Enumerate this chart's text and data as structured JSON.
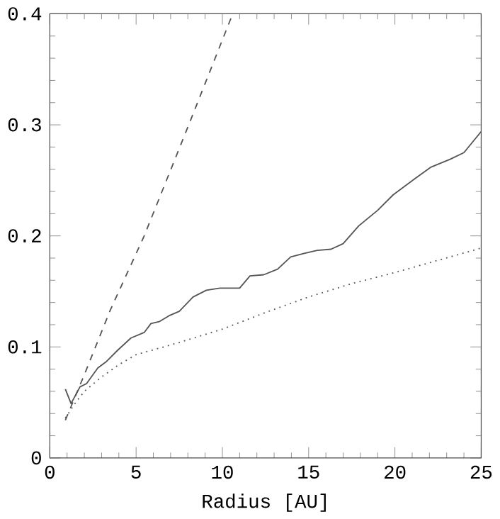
{
  "chart_data": {
    "type": "line",
    "xlabel": "Radius [AU]",
    "xlim": [
      0,
      25
    ],
    "ylim": [
      0,
      0.4
    ],
    "xticks": [
      0,
      5,
      10,
      15,
      20,
      25
    ],
    "yticks": [
      0,
      0.1,
      0.2,
      0.3,
      0.4
    ],
    "marker": "none",
    "series": [
      {
        "color": "#555555",
        "line_style": "solid",
        "x": [
          0.9,
          1.23,
          1.75,
          2.13,
          2.78,
          3.29,
          3.93,
          4.7,
          5.47,
          5.86,
          6.37,
          6.9,
          7.5,
          8.3,
          9.07,
          9.85,
          11.0,
          11.6,
          12.4,
          13.2,
          13.96,
          14.7,
          15.5,
          16.3,
          17.0,
          17.9,
          19.0,
          19.9,
          21.2,
          22.1,
          23.2,
          24.0,
          25.0
        ],
        "values": [
          0.062,
          0.049,
          0.064,
          0.067,
          0.081,
          0.087,
          0.097,
          0.108,
          0.113,
          0.121,
          0.123,
          0.128,
          0.132,
          0.145,
          0.151,
          0.153,
          0.153,
          0.164,
          0.165,
          0.17,
          0.181,
          0.184,
          0.187,
          0.188,
          0.193,
          0.209,
          0.223,
          0.237,
          0.252,
          0.262,
          0.269,
          0.275,
          0.294
        ]
      },
      {
        "color": "#555555",
        "line_style": "dashed",
        "x": [
          0.9,
          2.0,
          3.5,
          5.47,
          8.05,
          10.6
        ],
        "values": [
          0.034,
          0.075,
          0.133,
          0.2,
          0.3,
          0.4
        ]
      },
      {
        "color": "#555555",
        "line_style": "dotted",
        "x": [
          0.9,
          1.5,
          2.0,
          3.0,
          4.0,
          5.0,
          7.5,
          10.0,
          12.5,
          15.0,
          17.5,
          20.0,
          22.5,
          25.0
        ],
        "values": [
          0.036,
          0.05,
          0.06,
          0.073,
          0.084,
          0.093,
          0.104,
          0.116,
          0.131,
          0.145,
          0.157,
          0.167,
          0.178,
          0.189
        ]
      }
    ]
  }
}
